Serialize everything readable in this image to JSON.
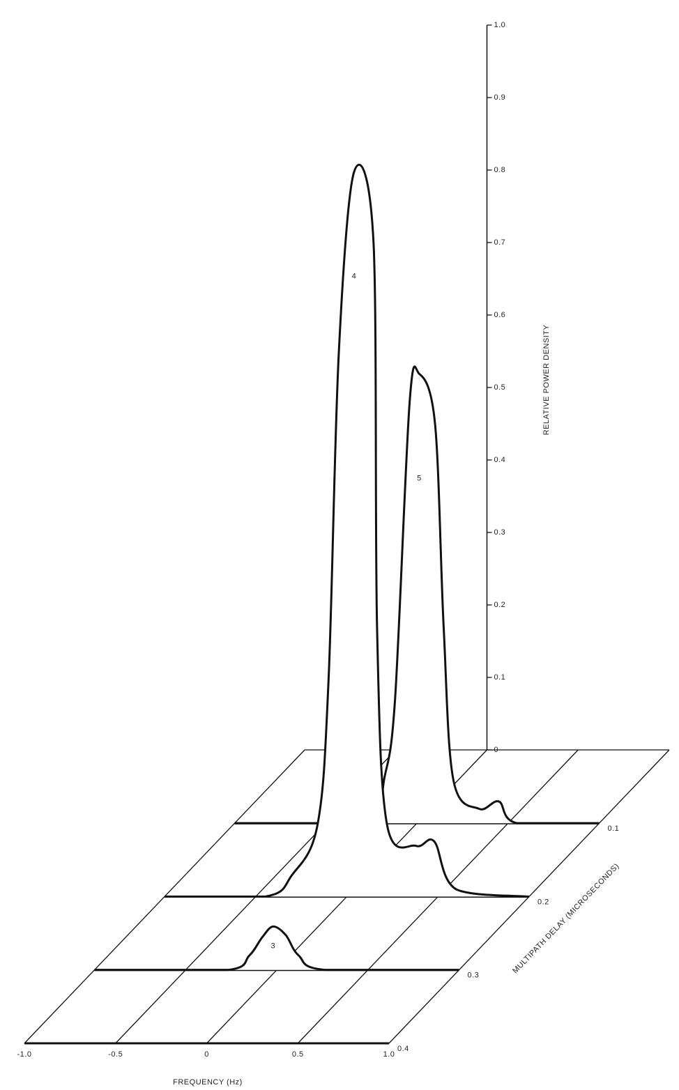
{
  "chart_data": {
    "type": "waterfall",
    "xlabel": "FREQUENCY (Hz)",
    "ylabel": "MULTIPATH DELAY (MICROSECONDS)",
    "zlabel": "RELATIVE POWER DENSITY",
    "xlim": [
      -1,
      1
    ],
    "xticks": [
      {
        "value": -1,
        "label": "-1.0"
      },
      -0.5,
      0,
      0.5,
      {
        "value": 1,
        "label": "1.0"
      }
    ],
    "ylim": [
      0,
      0.4
    ],
    "yticks": [
      0.1,
      0.2,
      0.3,
      0.4
    ],
    "zlim": [
      0,
      1
    ],
    "zticks": [
      0,
      0.1,
      0.2,
      0.3,
      0.4,
      0.5,
      0.6,
      0.7,
      0.8,
      0.9,
      {
        "value": 1,
        "label": "1.0"
      }
    ],
    "color": "#111111",
    "series": [
      {
        "name": "5",
        "delay": 0.1,
        "x": [
          -1,
          -0.24,
          -0.18,
          -0.12,
          -0.04,
          0.013,
          0.1,
          0.147,
          0.2,
          0.34,
          0.45,
          0.55,
          1
        ],
        "values": [
          0,
          0,
          0.06,
          0.17,
          0.58,
          0.62,
          0.55,
          0.27,
          0.06,
          0.02,
          0.03,
          0,
          0
        ]
      },
      {
        "name": "4",
        "delay": 0.2,
        "x": [
          -1,
          -0.45,
          -0.3,
          -0.16,
          -0.1,
          -0.044,
          0.04,
          0.147,
          0.166,
          0.22,
          0.38,
          0.48,
          0.6,
          1
        ],
        "values": [
          0,
          0,
          0.03,
          0.1,
          0.3,
          0.75,
          1.0,
          0.9,
          0.37,
          0.1,
          0.07,
          0.076,
          0.01,
          0
        ]
      },
      {
        "name": "3",
        "delay": 0.3,
        "x": [
          -1,
          -0.27,
          -0.15,
          -0.08,
          -0.02,
          0.05,
          0.12,
          0.27,
          1
        ],
        "values": [
          0,
          0,
          0.02,
          0.045,
          0.06,
          0.048,
          0.02,
          0,
          0
        ]
      }
    ]
  }
}
